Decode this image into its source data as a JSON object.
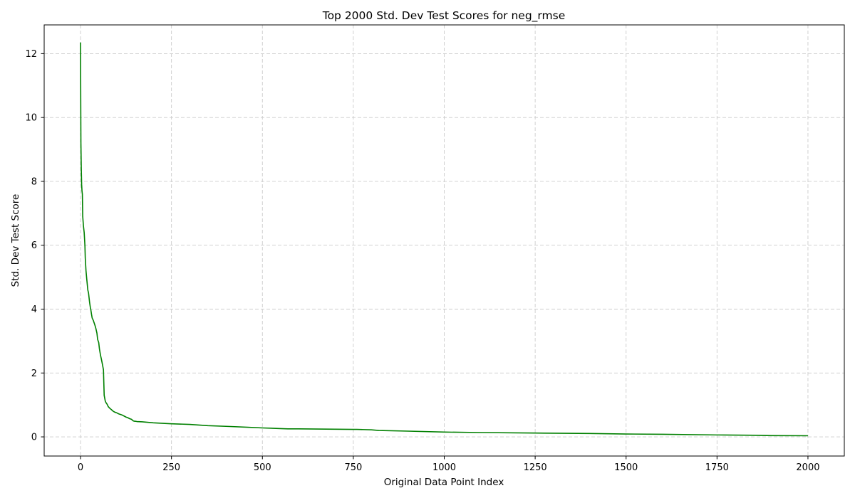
{
  "chart_data": {
    "type": "line",
    "title": "Top 2000 Std. Dev Test Scores for neg_rmse",
    "xlabel": "Original Data Point Index",
    "ylabel": "Std. Dev Test Score",
    "xlim": [
      -100,
      2100
    ],
    "ylim": [
      -0.6,
      12.9
    ],
    "xticks": [
      0,
      250,
      500,
      750,
      1000,
      1250,
      1500,
      1750,
      2000
    ],
    "yticks": [
      0,
      2,
      4,
      6,
      8,
      10,
      12
    ],
    "grid": true,
    "line_color": "#008000",
    "series": [
      {
        "x": [
          0,
          0.5,
          1,
          2,
          3,
          4,
          5,
          6,
          8,
          10,
          12,
          13,
          15,
          17,
          20,
          22,
          25,
          27,
          28,
          30,
          32,
          35,
          38,
          40,
          42,
          45,
          47,
          50,
          52,
          55,
          57,
          60,
          63,
          65,
          68,
          70,
          72,
          73,
          74,
          76,
          80,
          85,
          90,
          95,
          100,
          105,
          110,
          115,
          120,
          125,
          130,
          135,
          140,
          145,
          148,
          150,
          155,
          170,
          200,
          250,
          300,
          350,
          400,
          460,
          500,
          550,
          570,
          600,
          650,
          700,
          750,
          760,
          800,
          820,
          900,
          1000,
          1100,
          1250,
          1400,
          1500,
          1600,
          1750,
          1850,
          1900,
          2000
        ],
        "y": [
          12.35,
          10.6,
          9.2,
          8.4,
          7.9,
          7.7,
          7.6,
          6.9,
          6.6,
          6.4,
          6.0,
          5.6,
          5.2,
          4.95,
          4.6,
          4.5,
          4.2,
          4.05,
          4.0,
          3.85,
          3.72,
          3.65,
          3.55,
          3.48,
          3.4,
          3.25,
          3.05,
          2.95,
          2.75,
          2.55,
          2.45,
          2.28,
          2.1,
          1.3,
          1.12,
          1.07,
          1.04,
          1.02,
          1.0,
          0.95,
          0.9,
          0.85,
          0.8,
          0.77,
          0.75,
          0.72,
          0.7,
          0.68,
          0.65,
          0.62,
          0.6,
          0.57,
          0.55,
          0.5,
          0.49,
          0.49,
          0.48,
          0.47,
          0.44,
          0.41,
          0.39,
          0.35,
          0.33,
          0.3,
          0.28,
          0.26,
          0.25,
          0.25,
          0.245,
          0.24,
          0.235,
          0.235,
          0.22,
          0.2,
          0.18,
          0.15,
          0.135,
          0.12,
          0.105,
          0.09,
          0.08,
          0.06,
          0.05,
          0.04,
          0.035
        ]
      }
    ]
  }
}
